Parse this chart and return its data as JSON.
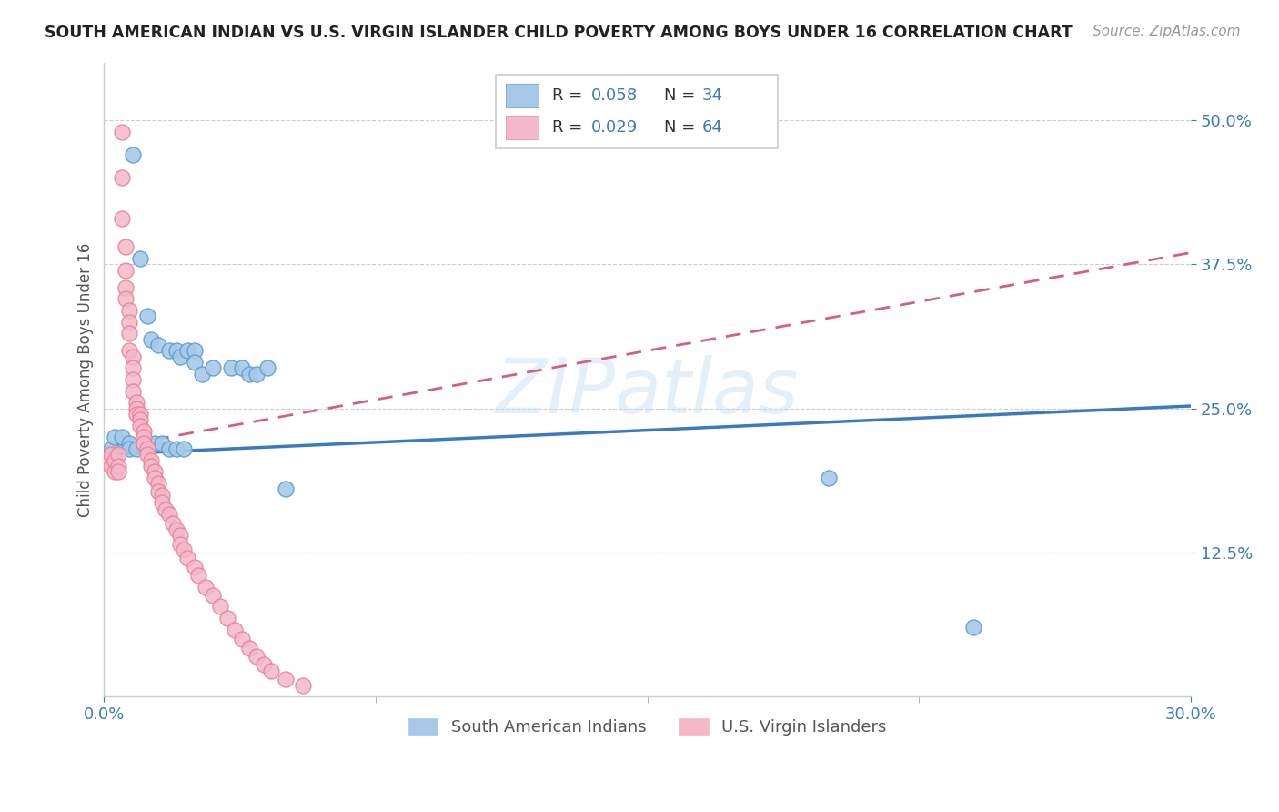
{
  "title": "SOUTH AMERICAN INDIAN VS U.S. VIRGIN ISLANDER CHILD POVERTY AMONG BOYS UNDER 16 CORRELATION CHART",
  "source": "Source: ZipAtlas.com",
  "ylabel": "Child Poverty Among Boys Under 16",
  "xlim": [
    0.0,
    0.3
  ],
  "ylim": [
    0.0,
    0.55
  ],
  "ytick_vals": [
    0.125,
    0.25,
    0.375,
    0.5
  ],
  "ytick_labels": [
    "12.5%",
    "25.0%",
    "37.5%",
    "50.0%"
  ],
  "xtick_vals": [
    0.0,
    0.3
  ],
  "xtick_labels": [
    "0.0%",
    "30.0%"
  ],
  "legend_r1": "0.058",
  "legend_n1": "34",
  "legend_r2": "0.029",
  "legend_n2": "64",
  "blue_color": "#a8c8e8",
  "pink_color": "#f4b8c8",
  "blue_edge_color": "#5a9fd4",
  "pink_edge_color": "#e8809a",
  "blue_line_color": "#3a7abf",
  "pink_line_color": "#d46080",
  "watermark": "ZIPatlas",
  "blue_dots_x": [
    0.002,
    0.006,
    0.008,
    0.01,
    0.012,
    0.013,
    0.015,
    0.018,
    0.02,
    0.021,
    0.023,
    0.025,
    0.025,
    0.027,
    0.03,
    0.003,
    0.005,
    0.007,
    0.007,
    0.009,
    0.011,
    0.014,
    0.016,
    0.018,
    0.02,
    0.022,
    0.035,
    0.038,
    0.04,
    0.042,
    0.045,
    0.05,
    0.2,
    0.24
  ],
  "blue_dots_y": [
    0.215,
    0.22,
    0.47,
    0.38,
    0.33,
    0.31,
    0.305,
    0.3,
    0.3,
    0.295,
    0.3,
    0.3,
    0.29,
    0.28,
    0.285,
    0.225,
    0.225,
    0.22,
    0.215,
    0.215,
    0.22,
    0.22,
    0.22,
    0.215,
    0.215,
    0.215,
    0.285,
    0.285,
    0.28,
    0.28,
    0.285,
    0.18,
    0.19,
    0.06
  ],
  "pink_dots_x": [
    0.001,
    0.002,
    0.002,
    0.003,
    0.003,
    0.004,
    0.004,
    0.004,
    0.005,
    0.005,
    0.005,
    0.006,
    0.006,
    0.006,
    0.006,
    0.007,
    0.007,
    0.007,
    0.007,
    0.008,
    0.008,
    0.008,
    0.008,
    0.009,
    0.009,
    0.009,
    0.01,
    0.01,
    0.01,
    0.011,
    0.011,
    0.011,
    0.012,
    0.012,
    0.013,
    0.013,
    0.014,
    0.014,
    0.015,
    0.015,
    0.016,
    0.016,
    0.017,
    0.018,
    0.019,
    0.02,
    0.021,
    0.021,
    0.022,
    0.023,
    0.025,
    0.026,
    0.028,
    0.03,
    0.032,
    0.034,
    0.036,
    0.038,
    0.04,
    0.042,
    0.044,
    0.046,
    0.05,
    0.055
  ],
  "pink_dots_y": [
    0.205,
    0.21,
    0.2,
    0.205,
    0.195,
    0.21,
    0.2,
    0.195,
    0.49,
    0.45,
    0.415,
    0.39,
    0.37,
    0.355,
    0.345,
    0.335,
    0.325,
    0.315,
    0.3,
    0.295,
    0.285,
    0.275,
    0.265,
    0.255,
    0.25,
    0.245,
    0.245,
    0.24,
    0.235,
    0.23,
    0.225,
    0.22,
    0.215,
    0.21,
    0.205,
    0.2,
    0.195,
    0.19,
    0.185,
    0.178,
    0.175,
    0.168,
    0.162,
    0.158,
    0.15,
    0.145,
    0.14,
    0.132,
    0.127,
    0.12,
    0.112,
    0.105,
    0.095,
    0.088,
    0.078,
    0.068,
    0.058,
    0.05,
    0.042,
    0.035,
    0.028,
    0.022,
    0.015,
    0.01
  ],
  "background_color": "#ffffff",
  "grid_color": "#cccccc"
}
